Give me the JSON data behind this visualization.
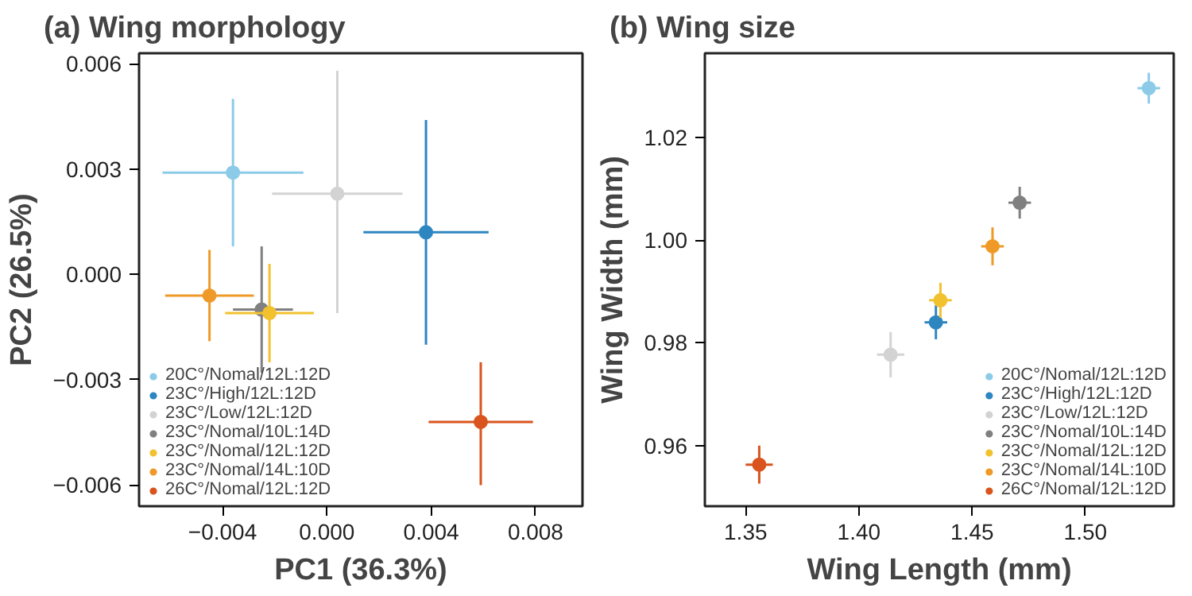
{
  "chart_data": [
    {
      "type": "scatter",
      "title": "(a) Wing morphology",
      "xlabel": "PC1 (36.3%)",
      "ylabel": "PC2 (26.5%)",
      "xlim": [
        -0.0072,
        0.0098
      ],
      "ylim": [
        -0.0066,
        0.0063
      ],
      "xticks": [
        {
          "value": -0.004,
          "label": "−0.004"
        },
        {
          "value": 0.0,
          "label": "0.000"
        },
        {
          "value": 0.004,
          "label": "0.004"
        },
        {
          "value": 0.008,
          "label": "0.008"
        }
      ],
      "yticks": [
        {
          "value": -0.006,
          "label": "−0.006"
        },
        {
          "value": -0.003,
          "label": "−0.003"
        },
        {
          "value": 0.0,
          "label": "0.000"
        },
        {
          "value": 0.003,
          "label": "0.003"
        },
        {
          "value": 0.006,
          "label": "0.006"
        }
      ],
      "grid": false,
      "legend": "bottom left",
      "marker": "circle",
      "series": [
        {
          "name": "20C°/Nomal/12L:12D",
          "color": "#8ccbe8",
          "x": [
            -0.0036
          ],
          "values": [
            0.0029
          ],
          "xerrors": [
            [
              -0.0063,
              -0.0009
            ]
          ],
          "errors": [
            [
              0.0008,
              0.005
            ]
          ]
        },
        {
          "name": "23C°/High/12L:12D",
          "color": "#2e86c1",
          "x": [
            0.0038
          ],
          "values": [
            0.0012
          ],
          "xerrors": [
            [
              0.0014,
              0.0062
            ]
          ],
          "errors": [
            [
              -0.002,
              0.0044
            ]
          ]
        },
        {
          "name": "23C°/Low/12L:12D",
          "color": "#d3d3d3",
          "x": [
            0.0004
          ],
          "values": [
            0.0023
          ],
          "xerrors": [
            [
              -0.0021,
              0.0029
            ]
          ],
          "errors": [
            [
              -0.0011,
              0.0058
            ]
          ]
        },
        {
          "name": "23C°/Nomal/10L:14D",
          "color": "#808080",
          "x": [
            -0.0025
          ],
          "values": [
            -0.001
          ],
          "xerrors": [
            [
              -0.0036,
              -0.0013
            ]
          ],
          "errors": [
            [
              -0.0028,
              0.0008
            ]
          ]
        },
        {
          "name": "23C°/Nomal/12L:12D",
          "color": "#f2c12e",
          "x": [
            -0.0022
          ],
          "values": [
            -0.0011
          ],
          "xerrors": [
            [
              -0.0039,
              -0.0005
            ]
          ],
          "errors": [
            [
              -0.0025,
              0.0003
            ]
          ]
        },
        {
          "name": "23C°/Nomal/14L:10D",
          "color": "#ef9a28",
          "x": [
            -0.0045
          ],
          "values": [
            -0.0006
          ],
          "xerrors": [
            [
              -0.0062,
              -0.0028
            ]
          ],
          "errors": [
            [
              -0.0019,
              0.0007
            ]
          ]
        },
        {
          "name": "26C°/Nomal/12L:12D",
          "color": "#d9541e",
          "x": [
            0.0059
          ],
          "values": [
            -0.0042
          ],
          "xerrors": [
            [
              0.0039,
              0.0079
            ]
          ],
          "errors": [
            [
              -0.006,
              -0.0025
            ]
          ]
        }
      ]
    },
    {
      "type": "scatter",
      "title": "(b) Wing size",
      "xlabel": "Wing Length (mm)",
      "ylabel": "Wing Width (mm)",
      "xlim": [
        1.332,
        1.539
      ],
      "ylim": [
        0.9482,
        1.0364
      ],
      "xticks": [
        {
          "value": 1.35,
          "label": "1.35"
        },
        {
          "value": 1.4,
          "label": "1.40"
        },
        {
          "value": 1.45,
          "label": "1.45"
        },
        {
          "value": 1.5,
          "label": "1.50"
        }
      ],
      "yticks": [
        {
          "value": 0.96,
          "label": "0.96"
        },
        {
          "value": 0.98,
          "label": "0.98"
        },
        {
          "value": 1.0,
          "label": "1.00"
        },
        {
          "value": 1.02,
          "label": "1.02"
        }
      ],
      "grid": false,
      "legend": "bottom right",
      "marker": "circle",
      "series": [
        {
          "name": "20C°/Nomal/12L:12D",
          "color": "#8ccbe8",
          "x": [
            1.528
          ],
          "values": [
            1.0296
          ],
          "xerrors": [
            [
              1.523,
              1.533
            ]
          ],
          "errors": [
            [
              1.0266,
              1.0326
            ]
          ]
        },
        {
          "name": "23C°/High/12L:12D",
          "color": "#2e86c1",
          "x": [
            1.434
          ],
          "values": [
            0.984
          ],
          "xerrors": [
            [
              1.429,
              1.439
            ]
          ],
          "errors": [
            [
              0.9807,
              0.9873
            ]
          ]
        },
        {
          "name": "23C°/Low/12L:12D",
          "color": "#d3d3d3",
          "x": [
            1.414
          ],
          "values": [
            0.9777
          ],
          "xerrors": [
            [
              1.408,
              1.42
            ]
          ],
          "errors": [
            [
              0.9733,
              0.9821
            ]
          ]
        },
        {
          "name": "23C°/Nomal/10L:14D",
          "color": "#808080",
          "x": [
            1.471
          ],
          "values": [
            1.0073
          ],
          "xerrors": [
            [
              1.466,
              1.476
            ]
          ],
          "errors": [
            [
              1.0042,
              1.0104
            ]
          ]
        },
        {
          "name": "23C°/Nomal/12L:12D",
          "color": "#f2c12e",
          "x": [
            1.436
          ],
          "values": [
            0.9883
          ],
          "xerrors": [
            [
              1.431,
              1.441
            ]
          ],
          "errors": [
            [
              0.9849,
              0.9917
            ]
          ]
        },
        {
          "name": "23C°/Nomal/14L:10D",
          "color": "#ef9a28",
          "x": [
            1.459
          ],
          "values": [
            0.9988
          ],
          "xerrors": [
            [
              1.454,
              1.464
            ]
          ],
          "errors": [
            [
              0.9951,
              1.0025
            ]
          ]
        },
        {
          "name": "26C°/Nomal/12L:12D",
          "color": "#d9541e",
          "x": [
            1.356
          ],
          "values": [
            0.9563
          ],
          "xerrors": [
            [
              1.35,
              1.362
            ]
          ],
          "errors": [
            [
              0.9526,
              0.96
            ]
          ]
        }
      ]
    }
  ]
}
